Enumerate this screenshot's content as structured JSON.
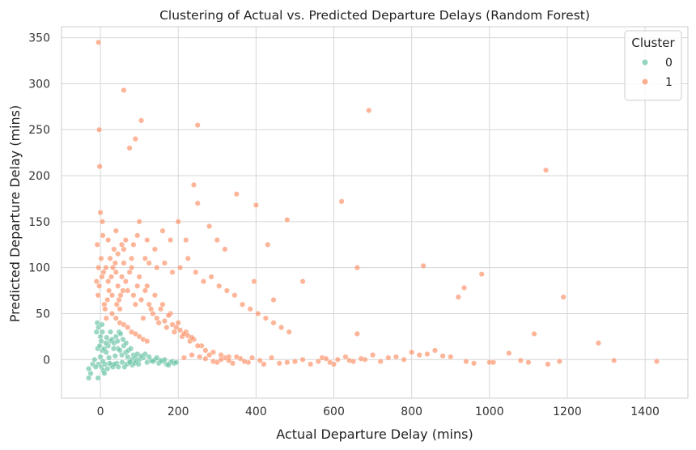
{
  "chart_data": {
    "type": "scatter",
    "title": "Clustering of Actual vs. Predicted Departure Delays (Random Forest)",
    "xlabel": "Actual Departure Delay (mins)",
    "ylabel": "Predicted Departure Delay (mins)",
    "xlim": [
      -100,
      1510
    ],
    "ylim": [
      -42,
      362
    ],
    "xticks": [
      0,
      200,
      400,
      600,
      800,
      1000,
      1200,
      1400
    ],
    "yticks": [
      0,
      50,
      100,
      150,
      200,
      250,
      300,
      350
    ],
    "grid": true,
    "legend": {
      "title": "Cluster",
      "placement": "top-right"
    },
    "series": [
      {
        "name": "0",
        "color": "#66c2a5",
        "points": [
          [
            -5,
            -5
          ],
          [
            0,
            3
          ],
          [
            5,
            10
          ],
          [
            10,
            12
          ],
          [
            15,
            8
          ],
          [
            20,
            15
          ],
          [
            25,
            20
          ],
          [
            30,
            22
          ],
          [
            35,
            18
          ],
          [
            40,
            25
          ],
          [
            45,
            12
          ],
          [
            50,
            10
          ],
          [
            55,
            5
          ],
          [
            60,
            15
          ],
          [
            65,
            8
          ],
          [
            70,
            3
          ],
          [
            75,
            -2
          ],
          [
            80,
            0
          ],
          [
            85,
            5
          ],
          [
            90,
            2
          ],
          [
            95,
            6
          ],
          [
            100,
            0
          ],
          [
            110,
            2
          ],
          [
            120,
            -3
          ],
          [
            130,
            -1
          ],
          [
            140,
            0
          ],
          [
            150,
            -4
          ],
          [
            160,
            -2
          ],
          [
            170,
            -5
          ],
          [
            180,
            -3
          ],
          [
            -10,
            30
          ],
          [
            -8,
            40
          ],
          [
            -5,
            35
          ],
          [
            0,
            25
          ],
          [
            5,
            30
          ],
          [
            -20,
            -5
          ],
          [
            -25,
            -15
          ],
          [
            -30,
            -10
          ],
          [
            -30,
            -20
          ],
          [
            -15,
            0
          ],
          [
            -12,
            -8
          ],
          [
            -7,
            12
          ],
          [
            3,
            -8
          ],
          [
            8,
            -12
          ],
          [
            12,
            -5
          ],
          [
            18,
            -10
          ],
          [
            22,
            2
          ],
          [
            28,
            -6
          ],
          [
            32,
            -8
          ],
          [
            38,
            4
          ],
          [
            42,
            -4
          ],
          [
            48,
            30
          ],
          [
            52,
            28
          ],
          [
            58,
            22
          ],
          [
            62,
            -8
          ],
          [
            68,
            -5
          ],
          [
            72,
            10
          ],
          [
            78,
            12
          ],
          [
            82,
            -6
          ],
          [
            88,
            -4
          ],
          [
            92,
            -2
          ],
          [
            98,
            -5
          ],
          [
            105,
            4
          ],
          [
            115,
            6
          ],
          [
            125,
            3
          ],
          [
            135,
            -2
          ],
          [
            145,
            2
          ],
          [
            155,
            -1
          ],
          [
            165,
            0
          ],
          [
            175,
            -6
          ],
          [
            185,
            -2
          ],
          [
            190,
            -4
          ],
          [
            195,
            -3
          ],
          [
            2,
            20
          ],
          [
            6,
            -2
          ],
          [
            14,
            18
          ],
          [
            24,
            -4
          ],
          [
            36,
            -5
          ],
          [
            44,
            20
          ],
          [
            56,
            -3
          ],
          [
            -2,
            15
          ],
          [
            4,
            38
          ],
          [
            -6,
            -20
          ],
          [
            10,
            -15
          ],
          [
            16,
            24
          ],
          [
            26,
            30
          ],
          [
            34,
            12
          ],
          [
            46,
            -8
          ],
          [
            66,
            18
          ],
          [
            76,
            -3
          ]
        ]
      },
      {
        "name": "1",
        "color": "#fc8d62",
        "points": [
          [
            -5,
            345
          ],
          [
            -3,
            250
          ],
          [
            -2,
            210
          ],
          [
            60,
            293
          ],
          [
            105,
            260
          ],
          [
            90,
            240
          ],
          [
            75,
            230
          ],
          [
            250,
            255
          ],
          [
            690,
            271
          ],
          [
            1145,
            206
          ],
          [
            0,
            160
          ],
          [
            5,
            150
          ],
          [
            20,
            130
          ],
          [
            40,
            140
          ],
          [
            60,
            120
          ],
          [
            80,
            110
          ],
          [
            100,
            150
          ],
          [
            120,
            130
          ],
          [
            140,
            120
          ],
          [
            160,
            140
          ],
          [
            180,
            130
          ],
          [
            200,
            150
          ],
          [
            220,
            130
          ],
          [
            240,
            190
          ],
          [
            250,
            170
          ],
          [
            280,
            145
          ],
          [
            300,
            130
          ],
          [
            320,
            120
          ],
          [
            350,
            180
          ],
          [
            400,
            168
          ],
          [
            430,
            125
          ],
          [
            480,
            152
          ],
          [
            620,
            172
          ],
          [
            660,
            100
          ],
          [
            830,
            102
          ],
          [
            920,
            68
          ],
          [
            935,
            78
          ],
          [
            980,
            93
          ],
          [
            1190,
            68
          ],
          [
            1115,
            28
          ],
          [
            1280,
            18
          ],
          [
            1320,
            -1
          ],
          [
            1430,
            -2
          ],
          [
            1050,
            7
          ],
          [
            1100,
            -3
          ],
          [
            1150,
            -5
          ],
          [
            1000,
            -3
          ],
          [
            900,
            3
          ],
          [
            860,
            10
          ],
          [
            820,
            5
          ],
          [
            780,
            0
          ],
          [
            760,
            3
          ],
          [
            720,
            -2
          ],
          [
            680,
            0
          ],
          [
            660,
            28
          ],
          [
            640,
            -1
          ],
          [
            600,
            -5
          ],
          [
            560,
            -2
          ],
          [
            540,
            -5
          ],
          [
            500,
            -2
          ],
          [
            460,
            -4
          ],
          [
            440,
            2
          ],
          [
            420,
            -5
          ],
          [
            380,
            -3
          ],
          [
            360,
            1
          ],
          [
            340,
            -4
          ],
          [
            320,
            2
          ],
          [
            300,
            -3
          ],
          [
            280,
            5
          ],
          [
            260,
            15
          ],
          [
            240,
            22
          ],
          [
            220,
            30
          ],
          [
            200,
            40
          ],
          [
            180,
            50
          ],
          [
            160,
            60
          ],
          [
            140,
            70
          ],
          [
            120,
            80
          ],
          [
            100,
            90
          ],
          [
            80,
            100
          ],
          [
            60,
            105
          ],
          [
            40,
            95
          ],
          [
            20,
            85
          ],
          [
            10,
            60
          ],
          [
            15,
            45
          ],
          [
            30,
            70
          ],
          [
            50,
            55
          ],
          [
            70,
            75
          ],
          [
            90,
            60
          ],
          [
            110,
            45
          ],
          [
            130,
            55
          ],
          [
            150,
            40
          ],
          [
            170,
            35
          ],
          [
            190,
            30
          ],
          [
            210,
            25
          ],
          [
            230,
            20
          ],
          [
            250,
            15
          ],
          [
            270,
            10
          ],
          [
            290,
            8
          ],
          [
            310,
            5
          ],
          [
            330,
            3
          ],
          [
            45,
            80
          ],
          [
            55,
            90
          ],
          [
            65,
            85
          ],
          [
            75,
            95
          ],
          [
            85,
            70
          ],
          [
            95,
            80
          ],
          [
            105,
            65
          ],
          [
            115,
            75
          ],
          [
            125,
            60
          ],
          [
            135,
            50
          ],
          [
            145,
            45
          ],
          [
            155,
            55
          ],
          [
            165,
            42
          ],
          [
            175,
            48
          ],
          [
            185,
            38
          ],
          [
            195,
            35
          ],
          [
            205,
            32
          ],
          [
            215,
            28
          ],
          [
            225,
            26
          ],
          [
            235,
            24
          ],
          [
            25,
            110
          ],
          [
            35,
            120
          ],
          [
            45,
            115
          ],
          [
            55,
            125
          ],
          [
            65,
            130
          ],
          [
            85,
            125
          ],
          [
            95,
            135
          ],
          [
            115,
            110
          ],
          [
            125,
            105
          ],
          [
            145,
            100
          ],
          [
            165,
            105
          ],
          [
            185,
            95
          ],
          [
            205,
            100
          ],
          [
            225,
            110
          ],
          [
            245,
            95
          ],
          [
            265,
            85
          ],
          [
            285,
            90
          ],
          [
            305,
            80
          ],
          [
            325,
            75
          ],
          [
            345,
            70
          ],
          [
            365,
            60
          ],
          [
            385,
            55
          ],
          [
            405,
            50
          ],
          [
            425,
            45
          ],
          [
            445,
            40
          ],
          [
            465,
            35
          ],
          [
            485,
            30
          ],
          [
            520,
            85
          ],
          [
            445,
            65
          ],
          [
            395,
            85
          ],
          [
            30,
            50
          ],
          [
            40,
            45
          ],
          [
            50,
            40
          ],
          [
            60,
            38
          ],
          [
            70,
            35
          ],
          [
            80,
            30
          ],
          [
            90,
            28
          ],
          [
            100,
            25
          ],
          [
            110,
            22
          ],
          [
            120,
            20
          ],
          [
            12,
            55
          ],
          [
            18,
            65
          ],
          [
            22,
            75
          ],
          [
            28,
            90
          ],
          [
            32,
            100
          ],
          [
            38,
            105
          ],
          [
            42,
            60
          ],
          [
            48,
            65
          ],
          [
            52,
            70
          ],
          [
            58,
            75
          ],
          [
            -8,
            125
          ],
          [
            -5,
            100
          ],
          [
            -3,
            80
          ],
          [
            2,
            110
          ],
          [
            8,
            95
          ],
          [
            -10,
            85
          ],
          [
            -6,
            70
          ],
          [
            4,
            90
          ],
          [
            6,
            135
          ],
          [
            14,
            100
          ],
          [
            700,
            5
          ],
          [
            740,
            2
          ],
          [
            800,
            8
          ],
          [
            840,
            6
          ],
          [
            880,
            4
          ],
          [
            940,
            -2
          ],
          [
            960,
            -4
          ],
          [
            1010,
            -3
          ],
          [
            1080,
            -1
          ],
          [
            1180,
            -2
          ],
          [
            570,
            2
          ],
          [
            590,
            -3
          ],
          [
            610,
            0
          ],
          [
            630,
            3
          ],
          [
            650,
            -2
          ],
          [
            670,
            1
          ],
          [
            580,
            1
          ],
          [
            520,
            0
          ],
          [
            480,
            -3
          ],
          [
            410,
            -1
          ],
          [
            390,
            2
          ],
          [
            370,
            -2
          ],
          [
            350,
            3
          ],
          [
            330,
            -1
          ],
          [
            310,
            0
          ],
          [
            290,
            -2
          ],
          [
            270,
            1
          ],
          [
            255,
            3
          ],
          [
            235,
            5
          ],
          [
            215,
            2
          ]
        ]
      }
    ]
  }
}
